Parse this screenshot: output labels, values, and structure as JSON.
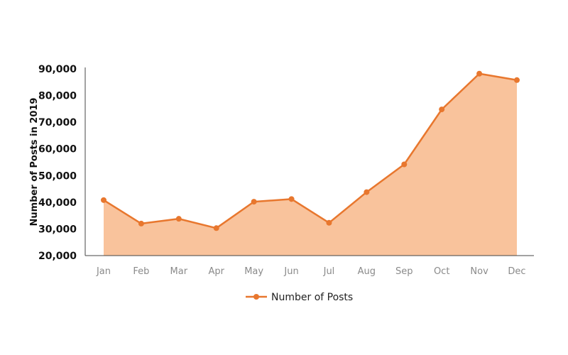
{
  "chart_data": {
    "type": "area",
    "title": "",
    "xlabel": "",
    "ylabel": "Number of Posts in 2019",
    "categories": [
      "Jan",
      "Feb",
      "Mar",
      "Apr",
      "May",
      "Jun",
      "Jul",
      "Aug",
      "Sep",
      "Oct",
      "Nov",
      "Dec"
    ],
    "series": [
      {
        "name": "Number of Posts",
        "values": [
          40800,
          32000,
          33800,
          30300,
          40200,
          41200,
          32300,
          43800,
          54200,
          74800,
          88200,
          85800
        ],
        "line_color": "#E8772E",
        "fill_color": "#F9C39C"
      }
    ],
    "ylim": [
      20000,
      90000
    ],
    "yticks": [
      "20,000",
      "30,000",
      "40,000",
      "50,000",
      "60,000",
      "70,000",
      "80,000",
      "90,000"
    ],
    "ytick_values": [
      20000,
      30000,
      40000,
      50000,
      60000,
      70000,
      80000,
      90000
    ],
    "grid": false,
    "legend_position": "bottom"
  }
}
